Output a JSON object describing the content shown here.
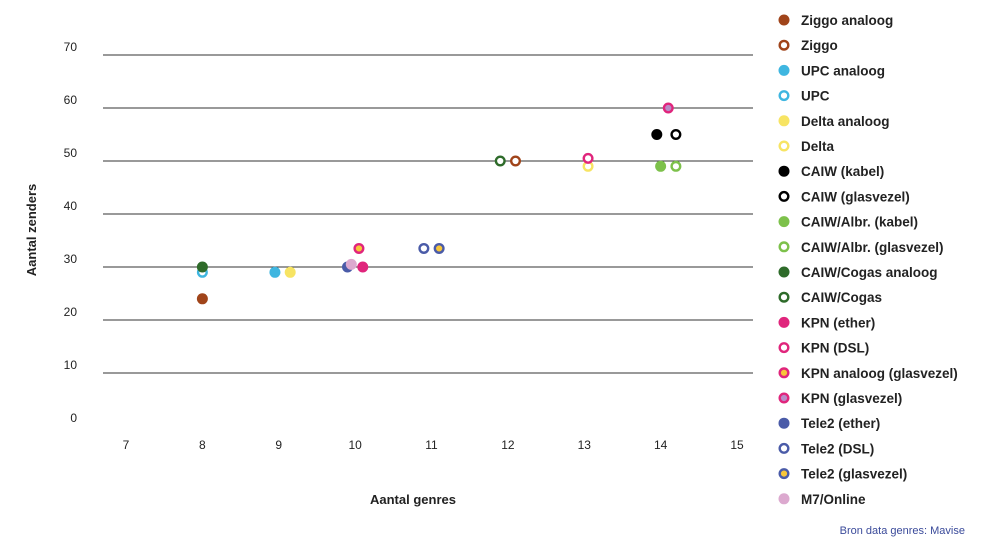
{
  "chart_data": {
    "type": "scatter",
    "xlabel": "Aantal genres",
    "ylabel": "Aantal zenders",
    "xlim": [
      7,
      15
    ],
    "ylim": [
      0,
      70
    ],
    "x_ticks": [
      "7",
      "8",
      "9",
      "10",
      "11",
      "12",
      "13",
      "14",
      "15"
    ],
    "y_ticks": [
      "0",
      "10",
      "20",
      "30",
      "40",
      "50",
      "60",
      "70"
    ],
    "grid": "horizontal",
    "legend_position": "right",
    "source": "Bron data genres: Mavise",
    "series": [
      {
        "name": "Ziggo analoog",
        "color": "#a0441a",
        "marker": "filled",
        "points": [
          [
            8,
            24
          ]
        ]
      },
      {
        "name": "Ziggo",
        "color": "#a0441a",
        "marker": "open",
        "points": [
          [
            12.1,
            50
          ]
        ]
      },
      {
        "name": "UPC analoog",
        "color": "#3fb6e0",
        "marker": "filled",
        "points": [
          [
            8.95,
            29
          ]
        ]
      },
      {
        "name": "UPC",
        "color": "#3fb6e0",
        "marker": "open",
        "points": [
          [
            8,
            29
          ]
        ]
      },
      {
        "name": "Delta analoog",
        "color": "#f7e463",
        "marker": "filled",
        "points": [
          [
            9.15,
            29
          ]
        ]
      },
      {
        "name": "Delta",
        "color": "#f7e463",
        "marker": "open",
        "points": [
          [
            13.05,
            49
          ]
        ]
      },
      {
        "name": "CAIW (kabel)",
        "color": "#000000",
        "marker": "filled",
        "points": [
          [
            13.95,
            55
          ]
        ]
      },
      {
        "name": "CAIW (glasvezel)",
        "color": "#000000",
        "marker": "open",
        "points": [
          [
            14.2,
            55
          ]
        ]
      },
      {
        "name": "CAIW/Albr. (kabel)",
        "color": "#7dc14b",
        "marker": "filled",
        "points": [
          [
            14,
            49
          ]
        ]
      },
      {
        "name": "CAIW/Albr. (glasvezel)",
        "color": "#7dc14b",
        "marker": "open",
        "points": [
          [
            14.2,
            49
          ]
        ]
      },
      {
        "name": "CAIW/Cogas analoog",
        "color": "#2e6b2a",
        "marker": "filled",
        "points": [
          [
            8,
            30
          ]
        ]
      },
      {
        "name": "CAIW/Cogas",
        "color": "#2e6b2a",
        "marker": "open",
        "points": [
          [
            11.9,
            50
          ]
        ]
      },
      {
        "name": "KPN (ether)",
        "color": "#e0257c",
        "marker": "filled",
        "points": [
          [
            10.1,
            30
          ]
        ]
      },
      {
        "name": "KPN (DSL)",
        "color": "#e0257c",
        "marker": "open",
        "points": [
          [
            13.05,
            50.5
          ]
        ]
      },
      {
        "name": "KPN analoog (glasvezel)",
        "color": "#e0257c",
        "marker": "ring",
        "inner": "#f7c63a",
        "points": [
          [
            10.05,
            33.5
          ]
        ]
      },
      {
        "name": "KPN (glasvezel)",
        "color": "#e0257c",
        "marker": "ring",
        "inner": "#b98bc7",
        "points": [
          [
            14.1,
            60
          ]
        ]
      },
      {
        "name": "Tele2 (ether)",
        "color": "#4a5ba8",
        "marker": "filled",
        "points": [
          [
            9.9,
            30
          ]
        ]
      },
      {
        "name": "Tele2 (DSL)",
        "color": "#4a5ba8",
        "marker": "open",
        "points": [
          [
            10.9,
            33.5
          ]
        ]
      },
      {
        "name": "Tele2 (glasvezel)",
        "color": "#4a5ba8",
        "marker": "ring",
        "inner": "#f7c63a",
        "points": [
          [
            11.1,
            33.5
          ]
        ]
      },
      {
        "name": "M7/Online",
        "color": "#dca9cf",
        "marker": "filled",
        "points": [
          [
            9.95,
            30.5
          ]
        ]
      }
    ]
  }
}
